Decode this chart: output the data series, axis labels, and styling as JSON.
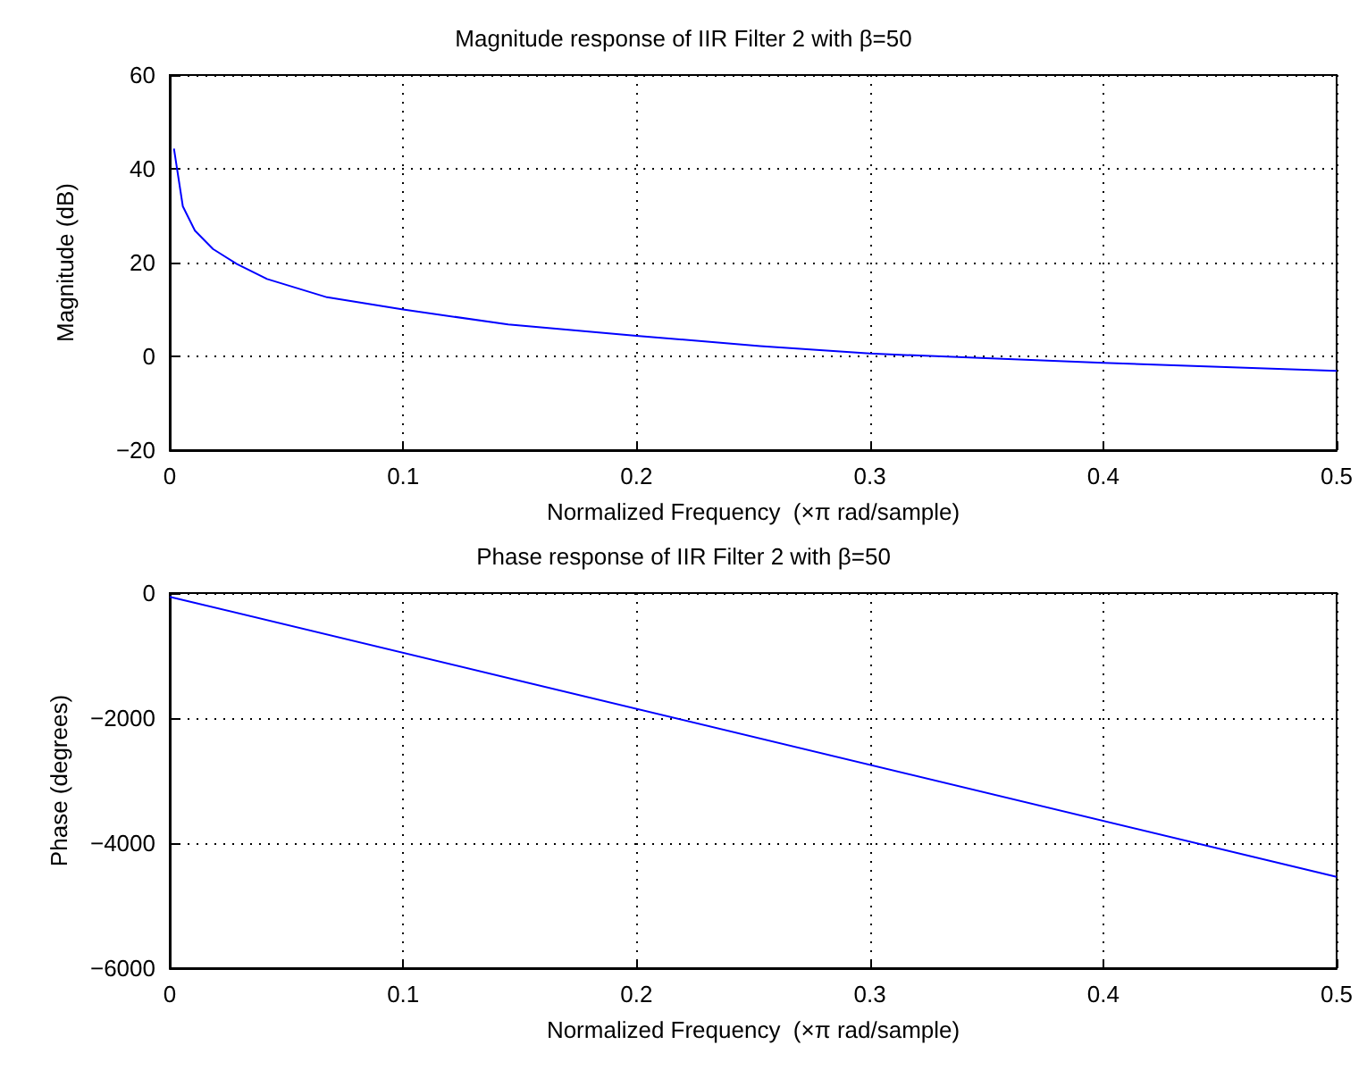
{
  "chart_data": [
    {
      "type": "line",
      "title": "Magnitude response of IIR Filter 2 with β=50",
      "xlabel": "Normalized Frequency  (×π rad/sample)",
      "ylabel": "Magnitude (dB)",
      "series": [
        {
          "color": "#0000ff",
          "x": [
            0.0018,
            0.003,
            0.0056,
            0.0108,
            0.0185,
            0.0288,
            0.0417,
            0.0674,
            0.1,
            0.145,
            0.2,
            0.253,
            0.3,
            0.4,
            0.5
          ],
          "values": [
            44.3,
            40.4,
            32,
            26.8,
            22.9,
            19.7,
            16.5,
            12.6,
            10,
            6.8,
            4.4,
            2.2,
            0.6,
            -1.4,
            -3.1
          ]
        }
      ],
      "xlim": [
        0,
        0.5
      ],
      "xticks": [
        0,
        0.1,
        0.2,
        0.3,
        0.4,
        0.5
      ],
      "ylim": [
        -20,
        60
      ],
      "yticks": [
        -20,
        0,
        20,
        40,
        60
      ],
      "grid": true,
      "line_style": "solid",
      "marker": "none"
    },
    {
      "type": "line",
      "title": "Phase response of IIR Filter 2 with β=50",
      "xlabel": "Normalized Frequency  (×π rad/sample)",
      "ylabel": "Phase (degrees)",
      "series": [
        {
          "color": "#0000ff",
          "x": [
            0,
            0.5
          ],
          "values": [
            -60,
            -4540
          ]
        }
      ],
      "xlim": [
        0,
        0.5
      ],
      "xticks": [
        0,
        0.1,
        0.2,
        0.3,
        0.4,
        0.5
      ],
      "ylim": [
        -6000,
        0
      ],
      "yticks": [
        -6000,
        -4000,
        -2000,
        0
      ],
      "grid": true,
      "line_style": "solid",
      "marker": "none"
    }
  ]
}
